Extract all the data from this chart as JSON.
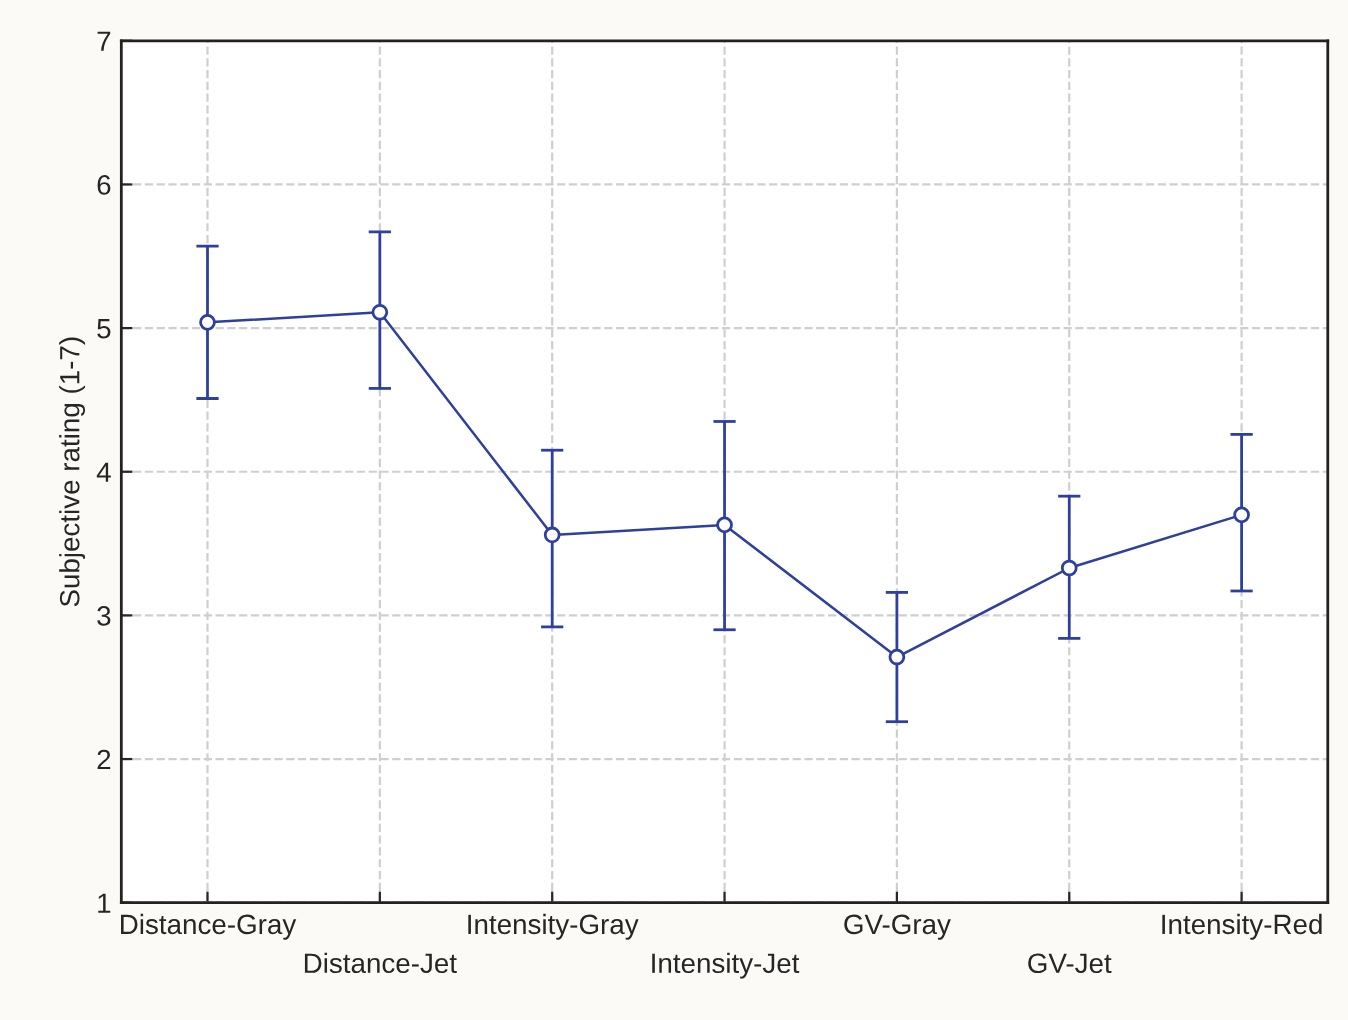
{
  "chart_data": {
    "type": "line",
    "ylabel": "Subjective rating (1-7)",
    "categories": [
      "Distance-Gray",
      "Distance-Jet",
      "Intensity-Gray",
      "Intensity-Jet",
      "GV-Gray",
      "GV-Jet",
      "Intensity-Red"
    ],
    "series": [
      {
        "color": "#2e3f9e",
        "values": [
          5.04,
          5.11,
          3.56,
          3.63,
          2.71,
          3.33,
          3.7
        ],
        "errors": [
          [
            4.51,
            5.57
          ],
          [
            4.58,
            5.67
          ],
          [
            2.92,
            4.15
          ],
          [
            2.9,
            4.35
          ],
          [
            2.26,
            3.16
          ],
          [
            2.84,
            3.83
          ],
          [
            3.17,
            4.26
          ]
        ]
      }
    ],
    "ylim": [
      1,
      7
    ],
    "yticks": [
      1,
      2,
      3,
      4,
      5,
      6,
      7
    ],
    "grid": true,
    "marker": "circle",
    "line_style": "solid"
  }
}
